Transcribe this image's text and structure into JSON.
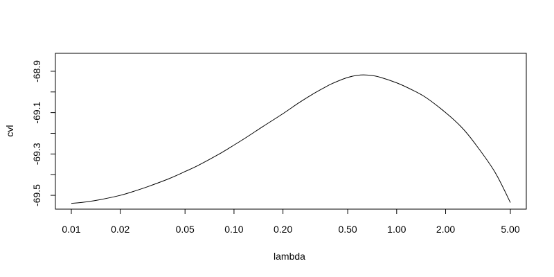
{
  "chart_data": {
    "type": "line",
    "title": "",
    "xlabel": "lambda",
    "ylabel": "cvl",
    "x_scale": "log",
    "xlim": [
      0.01,
      5.0
    ],
    "ylim": [
      -69.54,
      -68.84
    ],
    "x_ticks": [
      0.01,
      0.02,
      0.05,
      0.1,
      0.2,
      0.5,
      1.0,
      2.0,
      5.0
    ],
    "x_tick_labels": [
      "0.01",
      "0.02",
      "0.05",
      "0.10",
      "0.20",
      "0.50",
      "1.00",
      "2.00",
      "5.00"
    ],
    "y_ticks": [
      -69.5,
      -69.4,
      -69.3,
      -69.2,
      -69.1,
      -69.0,
      -68.9
    ],
    "y_tick_labels": [
      "-69.5",
      "",
      "-69.3",
      "",
      "-69.1",
      "",
      "-68.9"
    ],
    "grid": false,
    "series": [
      {
        "name": "cvl",
        "x": [
          0.01,
          0.012,
          0.015,
          0.02,
          0.025,
          0.03,
          0.04,
          0.05,
          0.06,
          0.08,
          0.1,
          0.12,
          0.15,
          0.2,
          0.25,
          0.3,
          0.35,
          0.4,
          0.5,
          0.6,
          0.7,
          0.8,
          1.0,
          1.2,
          1.5,
          2.0,
          2.5,
          3.0,
          4.0,
          5.0
        ],
        "y": [
          -69.539,
          -69.533,
          -69.521,
          -69.5,
          -69.477,
          -69.456,
          -69.419,
          -69.385,
          -69.356,
          -69.303,
          -69.257,
          -69.218,
          -69.168,
          -69.105,
          -69.053,
          -69.014,
          -68.984,
          -68.96,
          -68.93,
          -68.918,
          -68.92,
          -68.93,
          -68.956,
          -68.984,
          -69.025,
          -69.1,
          -69.17,
          -69.245,
          -69.385,
          -69.535
        ]
      }
    ]
  }
}
